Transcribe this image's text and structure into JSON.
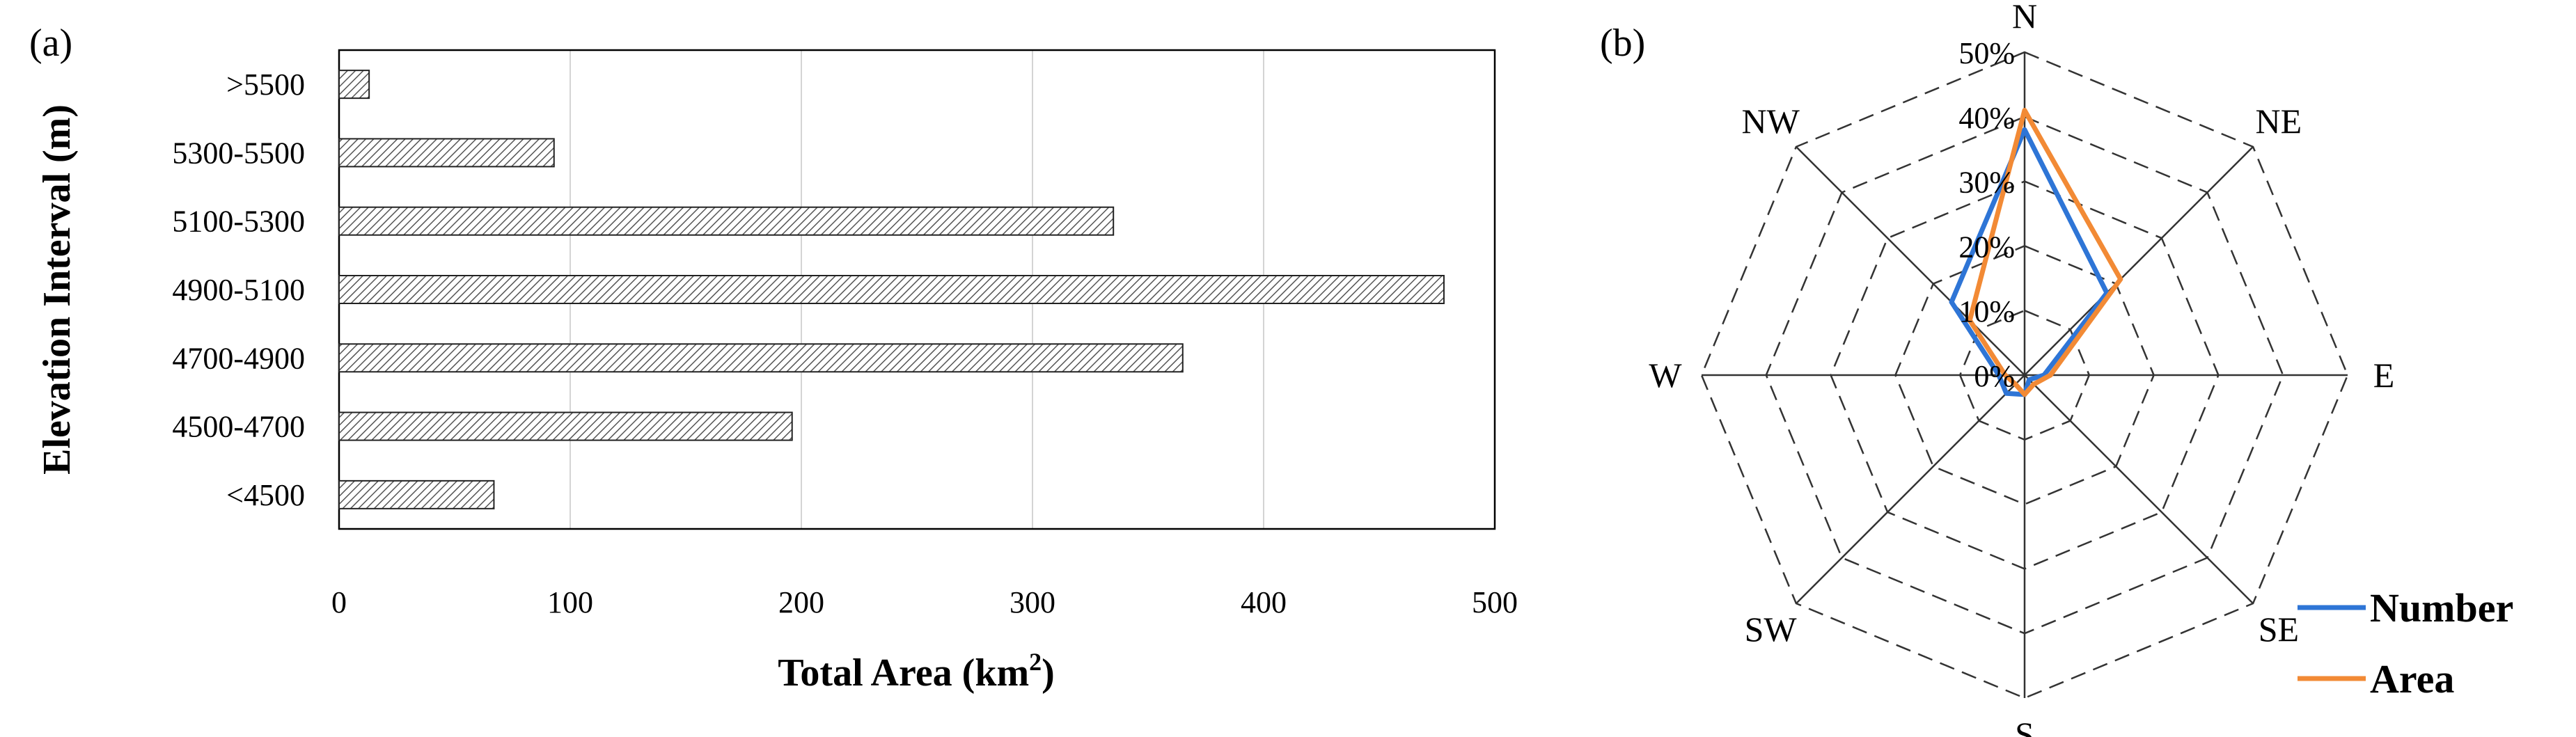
{
  "chart_data": [
    {
      "type": "bar",
      "orientation": "horizontal",
      "panel_label": "(a)",
      "categories": [
        ">5500",
        "5300-5500",
        "5100-5300",
        "4900-5100",
        "4700-4900",
        "4500-4700",
        "<4500"
      ],
      "values": [
        13,
        93,
        335,
        478,
        365,
        196,
        67
      ],
      "x_ticks": [
        "0",
        "100",
        "200",
        "300",
        "400",
        "500"
      ],
      "xlim": [
        0,
        500
      ],
      "xlabel_main": "Total Area (km",
      "xlabel_sup": "2",
      "xlabel_end": ")",
      "ylabel": "Elevation Interval (m)",
      "grid": "vertical",
      "bar_fill": "hatched"
    },
    {
      "type": "radar",
      "panel_label": "(b)",
      "directions": [
        "N",
        "NE",
        "E",
        "SE",
        "S",
        "SW",
        "W",
        "NW"
      ],
      "r_ticks": [
        "0%",
        "10%",
        "20%",
        "30%",
        "40%",
        "50%"
      ],
      "rlim": [
        0,
        50
      ],
      "series": [
        {
          "name": "Number",
          "color": "#2e75d6",
          "values": [
            38,
            18,
            3,
            1,
            3,
            4,
            4,
            16
          ]
        },
        {
          "name": "Area",
          "color": "#f28a35",
          "values": [
            41,
            21,
            4,
            2,
            3,
            2,
            3,
            12
          ]
        }
      ],
      "legend_position": "bottom-right"
    }
  ]
}
